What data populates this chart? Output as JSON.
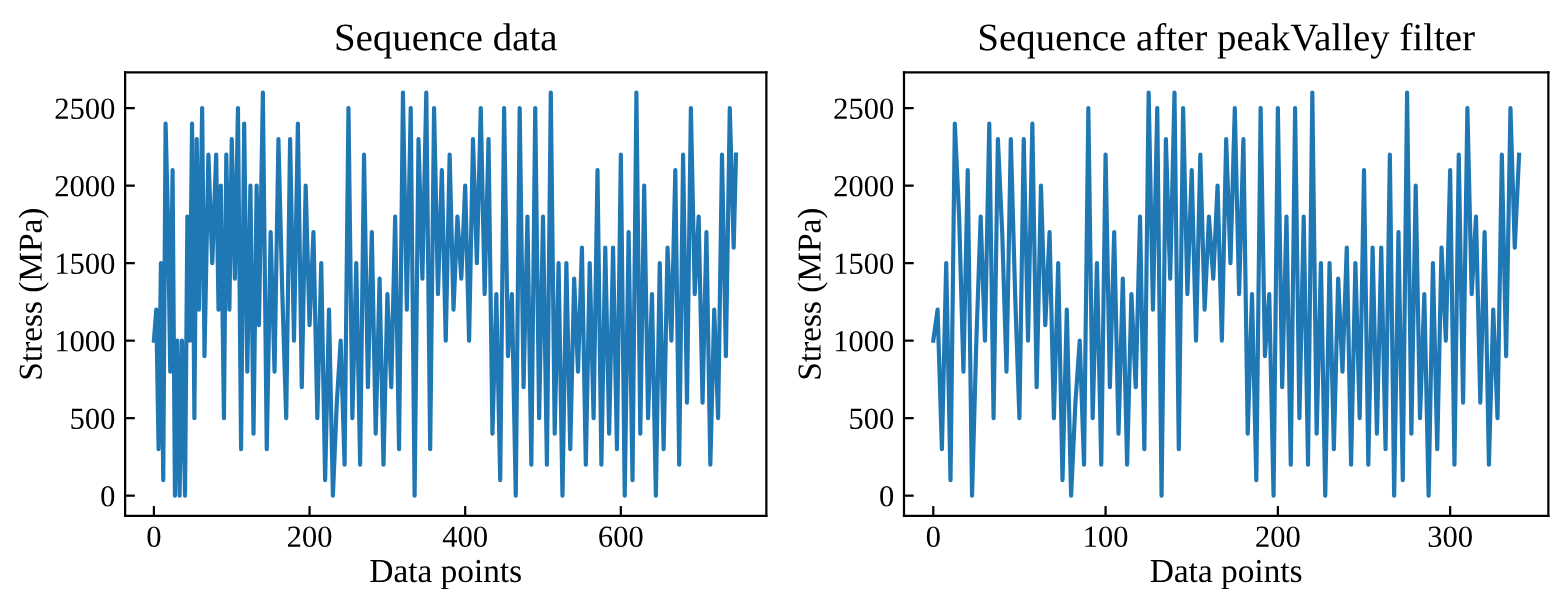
{
  "chart_data": [
    {
      "type": "line",
      "title": "Sequence data",
      "xlabel": "Data points",
      "ylabel": "Stress (MPa)",
      "xlim": [
        -37,
        787
      ],
      "xticks": [
        0,
        200,
        400,
        600
      ],
      "ylim": [
        -130,
        2730
      ],
      "yticks": [
        0,
        500,
        1000,
        1500,
        2000,
        2500
      ],
      "series": [
        {
          "color": "#1f77b4",
          "x": [
            0,
            3,
            6,
            9,
            12,
            15,
            18,
            21,
            24,
            27,
            30,
            33,
            36,
            40,
            43,
            46,
            49,
            52,
            55,
            58,
            62,
            65,
            70,
            75,
            80,
            83,
            86,
            90,
            93,
            97,
            100,
            104,
            108,
            112,
            116,
            120,
            124,
            128,
            132,
            135,
            140,
            145,
            150,
            155,
            160,
            165,
            170,
            175,
            180,
            185,
            190,
            195,
            200,
            205,
            210,
            215,
            220,
            225,
            230,
            235,
            240,
            245,
            250,
            255,
            260,
            265,
            270,
            275,
            280,
            285,
            290,
            295,
            300,
            305,
            310,
            315,
            320,
            325,
            330,
            335,
            340,
            345,
            350,
            355,
            360,
            365,
            370,
            375,
            380,
            385,
            390,
            395,
            400,
            405,
            410,
            415,
            420,
            425,
            430,
            435,
            440,
            445,
            450,
            455,
            460,
            465,
            470,
            475,
            480,
            485,
            490,
            495,
            500,
            505,
            510,
            515,
            520,
            525,
            530,
            535,
            540,
            545,
            550,
            555,
            560,
            565,
            570,
            575,
            580,
            585,
            590,
            595,
            600,
            605,
            610,
            615,
            620,
            625,
            630,
            635,
            640,
            645,
            650,
            655,
            660,
            665,
            670,
            675,
            680,
            685,
            690,
            695,
            700,
            705,
            710,
            715,
            720,
            725,
            730,
            735,
            740,
            745,
            748
          ],
          "values": [
            1000,
            1200,
            300,
            1500,
            100,
            2400,
            1800,
            800,
            2100,
            0,
            1000,
            0,
            1000,
            0,
            1800,
            1000,
            2400,
            500,
            2300,
            1200,
            2500,
            900,
            2200,
            1500,
            2200,
            1200,
            2000,
            500,
            2200,
            1200,
            2300,
            1400,
            2500,
            300,
            2400,
            800,
            2000,
            400,
            2000,
            1100,
            2600,
            300,
            1700,
            800,
            2300,
            1300,
            500,
            2300,
            1000,
            2400,
            700,
            2000,
            1100,
            1700,
            500,
            1500,
            100,
            1200,
            0,
            600,
            1000,
            200,
            2500,
            500,
            1500,
            200,
            2200,
            700,
            1700,
            400,
            1400,
            200,
            1300,
            700,
            1800,
            300,
            2600,
            1200,
            2500,
            0,
            2300,
            1400,
            2600,
            300,
            2500,
            1300,
            2100,
            1000,
            2200,
            1200,
            1800,
            1400,
            2000,
            1000,
            2300,
            1500,
            2500,
            1300,
            2300,
            400,
            1300,
            100,
            2500,
            900,
            1300,
            0,
            2500,
            700,
            1800,
            200,
            2500,
            500,
            1800,
            200,
            2600,
            400,
            1500,
            0,
            1500,
            300,
            1400,
            800,
            1600,
            200,
            1500,
            500,
            2100,
            200,
            1600,
            400,
            1600,
            300,
            2200,
            0,
            1700,
            100,
            2600,
            400,
            2000,
            500,
            1300,
            0,
            1500,
            300,
            1600,
            1000,
            2100,
            200,
            2200,
            600,
            2500,
            1300,
            1800,
            600,
            1700,
            200,
            1200,
            500,
            2200,
            900,
            2500,
            1600,
            2200
          ]
        }
      ]
    },
    {
      "type": "line",
      "title": "Sequence after peakValley filter",
      "xlabel": "Data points",
      "ylabel": "Stress (MPa)",
      "xlim": [
        -17,
        357
      ],
      "xticks": [
        0,
        100,
        200,
        300
      ],
      "ylim": [
        -130,
        2730
      ],
      "yticks": [
        0,
        500,
        1000,
        1500,
        2000,
        2500
      ],
      "series": [
        {
          "color": "#1f77b4",
          "x": [
            0,
            2.5,
            5,
            7.5,
            10,
            12.5,
            15,
            17.5,
            20,
            22.5,
            25,
            27.5,
            30,
            32.5,
            35,
            37.5,
            40,
            42.5,
            45,
            47.5,
            50,
            52.5,
            55,
            57.5,
            60,
            62.5,
            65,
            67.5,
            70,
            72.5,
            75,
            77.5,
            80,
            82.5,
            85,
            87.5,
            90,
            92.5,
            95,
            97.5,
            100,
            102.5,
            105,
            107.5,
            110,
            112.5,
            115,
            117.5,
            120,
            122.5,
            125,
            127.5,
            130,
            132.5,
            135,
            137.5,
            140,
            142.5,
            145,
            147.5,
            150,
            152.5,
            155,
            157.5,
            160,
            162.5,
            165,
            167.5,
            170,
            172.5,
            175,
            177.5,
            180,
            182.5,
            185,
            187.5,
            190,
            192.5,
            195,
            197.5,
            200,
            202.5,
            205,
            207.5,
            210,
            212.5,
            215,
            217.5,
            220,
            222.5,
            225,
            227.5,
            230,
            232.5,
            235,
            237.5,
            240,
            242.5,
            245,
            247.5,
            250,
            252.5,
            255,
            257.5,
            260,
            262.5,
            265,
            267.5,
            270,
            272.5,
            275,
            277.5,
            280,
            282.5,
            285,
            287.5,
            290,
            292.5,
            295,
            297.5,
            300,
            302.5,
            305,
            307.5,
            310,
            312.5,
            315,
            317.5,
            320,
            322.5,
            325,
            327.5,
            330,
            332.5,
            335,
            337.5,
            340
          ],
          "values": [
            1000,
            1200,
            300,
            1500,
            100,
            2400,
            1800,
            800,
            2100,
            0,
            1000,
            1800,
            1000,
            2400,
            500,
            2300,
            1700,
            800,
            2300,
            1300,
            500,
            2300,
            1000,
            2400,
            700,
            2000,
            1100,
            1700,
            500,
            1500,
            100,
            1200,
            0,
            600,
            1000,
            200,
            2500,
            500,
            1500,
            200,
            2200,
            700,
            1700,
            400,
            1400,
            200,
            1300,
            700,
            1800,
            300,
            2600,
            1200,
            2500,
            0,
            2300,
            1400,
            2600,
            300,
            2500,
            1300,
            2100,
            1000,
            2200,
            1200,
            1800,
            1400,
            2000,
            1000,
            2300,
            1500,
            2500,
            1300,
            2300,
            400,
            1300,
            100,
            2500,
            900,
            1300,
            0,
            2500,
            700,
            1800,
            200,
            2500,
            500,
            1800,
            200,
            2600,
            400,
            1500,
            0,
            1500,
            300,
            1400,
            800,
            1600,
            200,
            1500,
            500,
            2100,
            200,
            1600,
            400,
            1600,
            300,
            2200,
            0,
            1700,
            100,
            2600,
            400,
            2000,
            500,
            1300,
            0,
            1500,
            300,
            1600,
            1000,
            2100,
            200,
            2200,
            600,
            2500,
            1300,
            1800,
            600,
            1700,
            200,
            1200,
            500,
            2200,
            900,
            2500,
            1600,
            2200
          ]
        }
      ]
    }
  ]
}
